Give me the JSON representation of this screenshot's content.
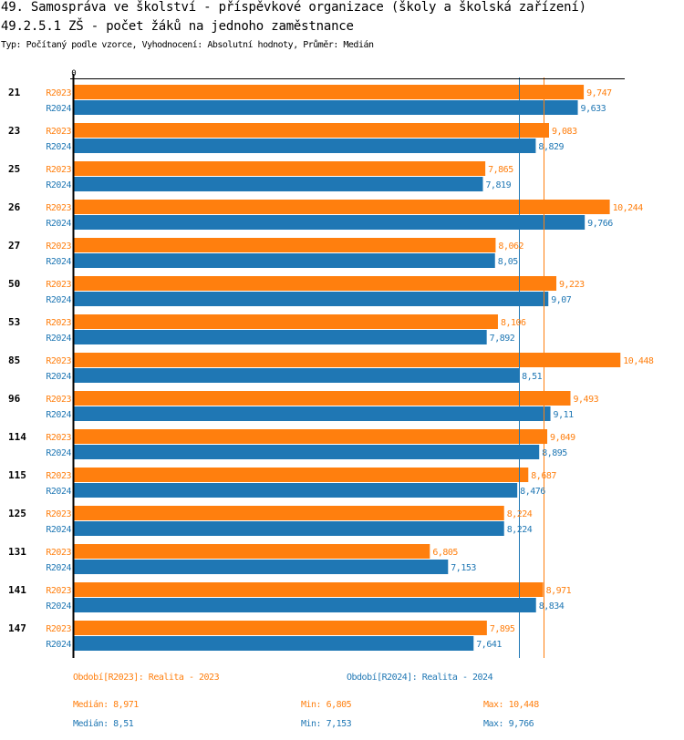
{
  "header": {
    "title": "49. Samospráva ve školství - příspěvkové organizace (školy a školská zařízení)",
    "subtitle": "49.2.5.1 ZŠ - počet žáků na jednoho zaměstnance",
    "meta": "Typ: Počítaný podle vzorce, Vyhodnocení: Absolutní hodnoty, Průměr: Medián"
  },
  "colors": {
    "R2023": "#ff7f0e",
    "R2024": "#1f77b4",
    "axis": "#000000"
  },
  "chart_data": {
    "type": "bar",
    "orientation": "horizontal",
    "title": "49.2.5.1 ZŠ - počet žáků na jednoho zaměstnance",
    "xlabel": "",
    "ylabel": "",
    "x_tick_labels": [
      "0"
    ],
    "xlim": [
      0,
      10.53
    ],
    "grid": false,
    "categories": [
      "21",
      "23",
      "25",
      "26",
      "27",
      "50",
      "53",
      "85",
      "96",
      "114",
      "115",
      "125",
      "131",
      "141",
      "147"
    ],
    "series": [
      {
        "name": "R2023",
        "labels": [
          "9,747",
          "9,083",
          "7,865",
          "10,244",
          "8,062",
          "9,223",
          "8,106",
          "10,448",
          "9,493",
          "9,049",
          "8,687",
          "8,224",
          "6,805",
          "8,971",
          "7,895"
        ],
        "values": [
          9.747,
          9.083,
          7.865,
          10.244,
          8.062,
          9.223,
          8.106,
          10.448,
          9.493,
          9.049,
          8.687,
          8.224,
          6.805,
          8.971,
          7.895
        ]
      },
      {
        "name": "R2024",
        "labels": [
          "9,633",
          "8,829",
          "7,819",
          "9,766",
          "8,05",
          "9,07",
          "7,892",
          "8,51",
          "9,11",
          "8,895",
          "8,476",
          "8,224",
          "7,153",
          "8,834",
          "7,641"
        ],
        "values": [
          9.633,
          8.829,
          7.819,
          9.766,
          8.05,
          9.07,
          7.892,
          8.51,
          9.11,
          8.895,
          8.476,
          8.224,
          7.153,
          8.834,
          7.641
        ]
      }
    ],
    "reference_lines": [
      {
        "series": "R2023",
        "type": "median",
        "value": 8.971
      },
      {
        "series": "R2024",
        "type": "median",
        "value": 8.51
      }
    ]
  },
  "footer": {
    "legend": [
      {
        "text": "Období[R2023]: Realita - 2023"
      },
      {
        "text": "Období[R2024]: Realita - 2024"
      }
    ],
    "stats": [
      {
        "median": "Medián: 8,971",
        "min": "Min: 6,805",
        "max": "Max: 10,448"
      },
      {
        "median": "Medián: 8,51",
        "min": "Min: 7,153",
        "max": "Max: 9,766"
      }
    ]
  }
}
